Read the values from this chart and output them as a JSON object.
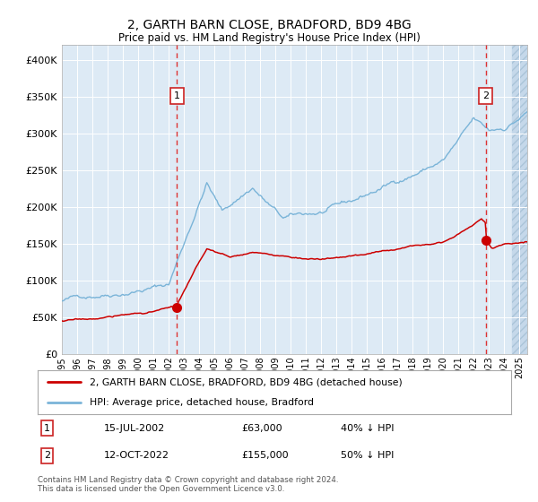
{
  "title1": "2, GARTH BARN CLOSE, BRADFORD, BD9 4BG",
  "title2": "Price paid vs. HM Land Registry's House Price Index (HPI)",
  "hpi_color": "#7ab4d8",
  "price_color": "#cc0000",
  "bg_color": "#ddeaf5",
  "hatch_color": "#c8d8e8",
  "annotation1": {
    "label": "1",
    "date_str": "15-JUL-2002",
    "price_str": "£63,000",
    "note": "40% ↓ HPI",
    "x_year": 2002.54,
    "y_val": 63000
  },
  "annotation2": {
    "label": "2",
    "date_str": "12-OCT-2022",
    "price_str": "£155,000",
    "note": "50% ↓ HPI",
    "x_year": 2022.79,
    "y_val": 155000
  },
  "legend_line1": "2, GARTH BARN CLOSE, BRADFORD, BD9 4BG (detached house)",
  "legend_line2": "HPI: Average price, detached house, Bradford",
  "footer": "Contains HM Land Registry data © Crown copyright and database right 2024.\nThis data is licensed under the Open Government Licence v3.0.",
  "ylim": [
    0,
    420000
  ],
  "xlim_start": 1995.0,
  "xlim_end": 2025.5,
  "future_start": 2024.5
}
